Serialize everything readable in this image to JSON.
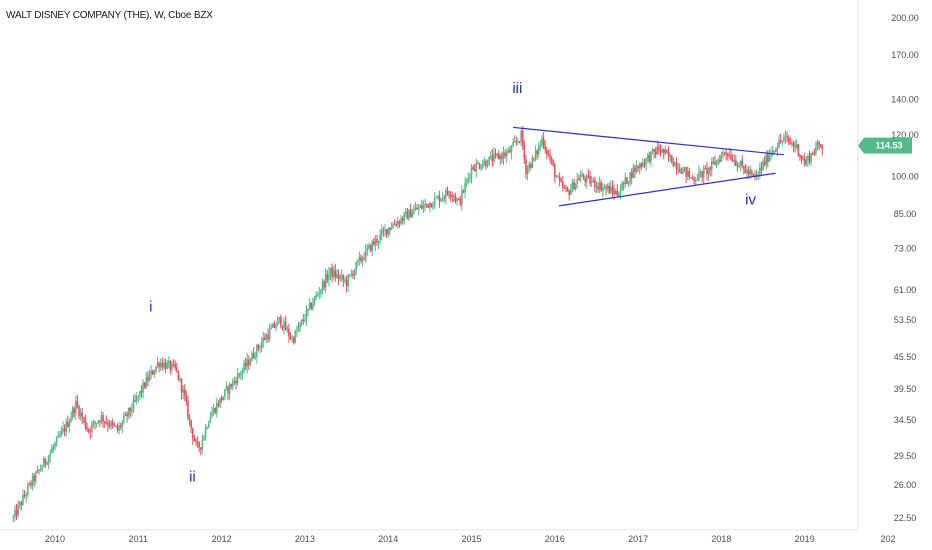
{
  "header": {
    "title": "WALT DISNEY COMPANY (THE), W, Cboe BZX"
  },
  "chart_data": {
    "type": "candlestick",
    "title": "WALT DISNEY COMPANY (THE), W, Cboe BZX",
    "scale": "log",
    "ylim": [
      22.5,
      200
    ],
    "y_ticks": [
      "200.00",
      "170.00",
      "140.00",
      "120.00",
      "100.00",
      "85.00",
      "73.00",
      "61.00",
      "53.50",
      "45.50",
      "39.50",
      "34.50",
      "29.50",
      "26.00",
      "22.50"
    ],
    "x_ticks": [
      "2010",
      "2011",
      "2012",
      "2013",
      "2014",
      "2015",
      "2016",
      "2017",
      "2018",
      "2019",
      "202"
    ],
    "last_price": "114.53",
    "colors": {
      "up": "#53b987",
      "down": "#eb4d5c",
      "wave": "#1f2fbd",
      "trendline": "#2b2fd6",
      "price_tag": "#53b987"
    },
    "price_path": [
      [
        2009.5,
        22.5
      ],
      [
        2009.7,
        26
      ],
      [
        2009.95,
        30
      ],
      [
        2010.15,
        34
      ],
      [
        2010.25,
        37
      ],
      [
        2010.4,
        33
      ],
      [
        2010.55,
        35
      ],
      [
        2010.75,
        33
      ],
      [
        2010.95,
        37
      ],
      [
        2011.1,
        41
      ],
      [
        2011.25,
        44.5
      ],
      [
        2011.45,
        43
      ],
      [
        2011.55,
        38.5
      ],
      [
        2011.62,
        34
      ],
      [
        2011.7,
        30.5
      ],
      [
        2011.75,
        31
      ],
      [
        2011.85,
        35
      ],
      [
        2012.05,
        39
      ],
      [
        2012.3,
        44
      ],
      [
        2012.5,
        49
      ],
      [
        2012.7,
        53.5
      ],
      [
        2012.85,
        49
      ],
      [
        2013.05,
        56
      ],
      [
        2013.3,
        66
      ],
      [
        2013.5,
        63
      ],
      [
        2013.65,
        69
      ],
      [
        2013.8,
        74
      ],
      [
        2014.0,
        80
      ],
      [
        2014.3,
        86
      ],
      [
        2014.55,
        90
      ],
      [
        2014.75,
        94
      ],
      [
        2014.85,
        89
      ],
      [
        2015.0,
        104
      ],
      [
        2015.25,
        108
      ],
      [
        2015.45,
        111
      ],
      [
        2015.6,
        120
      ],
      [
        2015.65,
        103
      ],
      [
        2015.75,
        108
      ],
      [
        2015.85,
        118
      ],
      [
        2016.05,
        97
      ],
      [
        2016.15,
        93
      ],
      [
        2016.3,
        100
      ],
      [
        2016.55,
        96
      ],
      [
        2016.75,
        93
      ],
      [
        2016.95,
        103
      ],
      [
        2017.25,
        113
      ],
      [
        2017.45,
        106
      ],
      [
        2017.65,
        99
      ],
      [
        2017.85,
        103
      ],
      [
        2018.05,
        112
      ],
      [
        2018.25,
        104
      ],
      [
        2018.4,
        99
      ],
      [
        2018.6,
        112
      ],
      [
        2018.75,
        118
      ],
      [
        2018.9,
        114
      ],
      [
        2019.0,
        106
      ],
      [
        2019.15,
        114
      ],
      [
        2019.22,
        114.53
      ]
    ],
    "annotations": [
      {
        "label": "i",
        "x": 2011.15,
        "price": 55.5
      },
      {
        "label": "ii",
        "x": 2011.65,
        "price": 26.4
      },
      {
        "label": "iii",
        "x": 2015.55,
        "price": 144
      },
      {
        "label": "iv",
        "x": 2018.35,
        "price": 88.5
      }
    ],
    "trendlines": [
      {
        "from": [
          2015.5,
          124
        ],
        "to": [
          2018.75,
          110
        ]
      },
      {
        "from": [
          2016.05,
          88
        ],
        "to": [
          2018.65,
          101.5
        ]
      }
    ]
  }
}
